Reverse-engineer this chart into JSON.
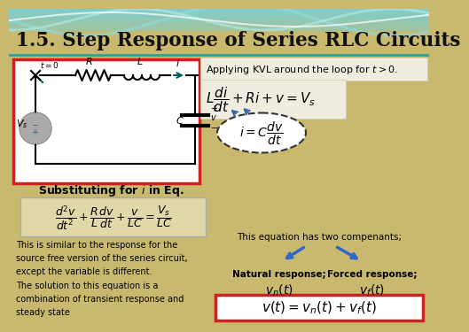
{
  "title": "1.5. Step Response of Series RLC Circuits",
  "bg_color": "#c8b96e",
  "header_teal_top": "#7ecece",
  "header_teal_bottom": "#a0c8a0",
  "text_kvl": "Applying KVL around the loop for $t > 0$.",
  "eq1": "$L\\dfrac{di}{dt} + Ri + v = V_s$",
  "eq2": "$i = C\\dfrac{dv}{dt}$",
  "eq3": "$\\dfrac{d^2v}{dt^2} + \\dfrac{R}{L}\\dfrac{dv}{dt} + \\dfrac{v}{LC} = \\dfrac{V_s}{LC}$",
  "sub_label": "Substituting for $i$ in Eq.",
  "text_similar": "This is similar to the response for the\nsource free version of the series circuit,\nexcept the variable is different.",
  "text_solution": "The solution to this equation is a\ncombination of transient response and\nsteady state",
  "text_two_comp": "This equation has two compenants;",
  "label_natural": "Natural response;",
  "label_forced": "Forced response;",
  "eq_natural": "$v_n(t)$",
  "eq_forced": "$v_f(t)$",
  "eq_final": "$v(t) = v_n(t) + v_f(t)$",
  "circuit_box_color": "#cc2222",
  "final_box_color": "#cc2222",
  "kvl_box_color": "#e8e0c0",
  "eq3_box_color": "#e0d8a8"
}
